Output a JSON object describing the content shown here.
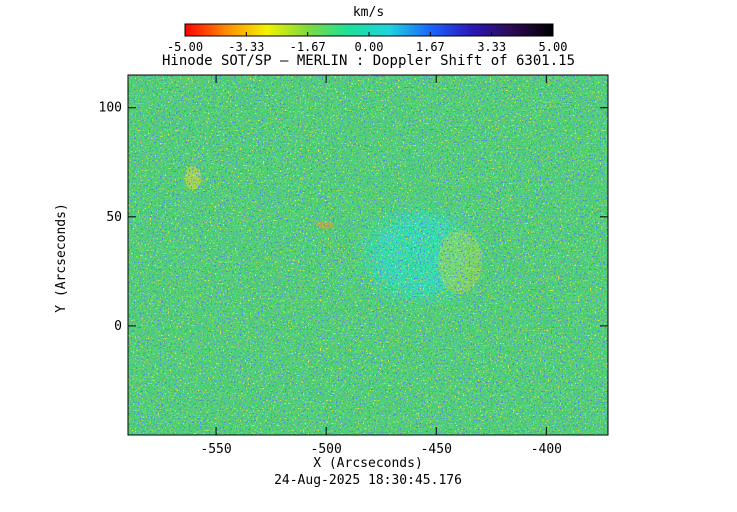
{
  "colorbar": {
    "unit": "km/s",
    "ticks": [
      "-5.00",
      "-3.33",
      "-1.67",
      "0.00",
      "1.67",
      "3.33",
      "5.00"
    ],
    "colors": [
      "#ff0000",
      "#ff8a00",
      "#f3f300",
      "#7ed93e",
      "#1ee09a",
      "#1fd3df",
      "#1b64ff",
      "#2a19b8",
      "#2d0a52",
      "#000000"
    ]
  },
  "plot": {
    "title": "Hinode SOT/SP — MERLIN : Doppler Shift of 6301.15",
    "xlabel": "X (Arcseconds)",
    "ylabel": "Y (Arcseconds)",
    "xticks": [
      "-550",
      "-500",
      "-450",
      "-400"
    ],
    "yticks": [
      "100",
      "50",
      "0"
    ],
    "xlim": [
      -590,
      -372
    ],
    "ylim": [
      -50,
      115
    ],
    "timestamp": "24-Aug-2025 18:30:45.176"
  }
}
